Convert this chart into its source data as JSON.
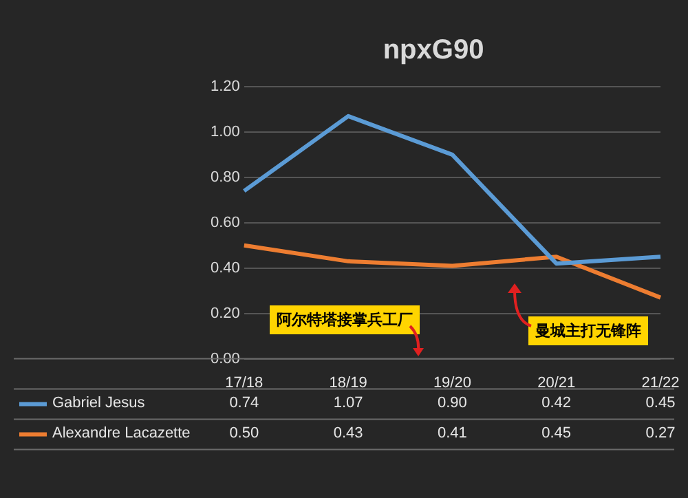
{
  "chart_data": {
    "type": "line",
    "title": "npxG90",
    "categories": [
      "17/18",
      "18/19",
      "19/20",
      "20/21",
      "21/22"
    ],
    "series": [
      {
        "name": "Gabriel Jesus",
        "color": "#5b9bd5",
        "values": [
          0.74,
          1.07,
          0.9,
          0.42,
          0.45
        ],
        "value_labels": [
          "0.74",
          "1.07",
          "0.90",
          "0.42",
          "0.45"
        ]
      },
      {
        "name": "Alexandre Lacazette",
        "color": "#ed7d31",
        "values": [
          0.5,
          0.43,
          0.41,
          0.45,
          0.27
        ],
        "value_labels": [
          "0.50",
          "0.43",
          "0.41",
          "0.45",
          "0.27"
        ]
      }
    ],
    "ylim": [
      0,
      1.2
    ],
    "yticks": [
      {
        "value": 0,
        "label": "0.00"
      },
      {
        "value": 0.2,
        "label": "0.20"
      },
      {
        "value": 0.4,
        "label": "0.40"
      },
      {
        "value": 0.6,
        "label": "0.60"
      },
      {
        "value": 0.8,
        "label": "0.80"
      },
      {
        "value": 1,
        "label": "1.00"
      },
      {
        "value": 1.2,
        "label": "1.20"
      }
    ],
    "grid": "y",
    "legend": "bottom",
    "marker": "none",
    "line_style": "solid",
    "annotations": [
      "阿尔特塔接掌兵工厂",
      "曼城主打无锋阵"
    ]
  }
}
